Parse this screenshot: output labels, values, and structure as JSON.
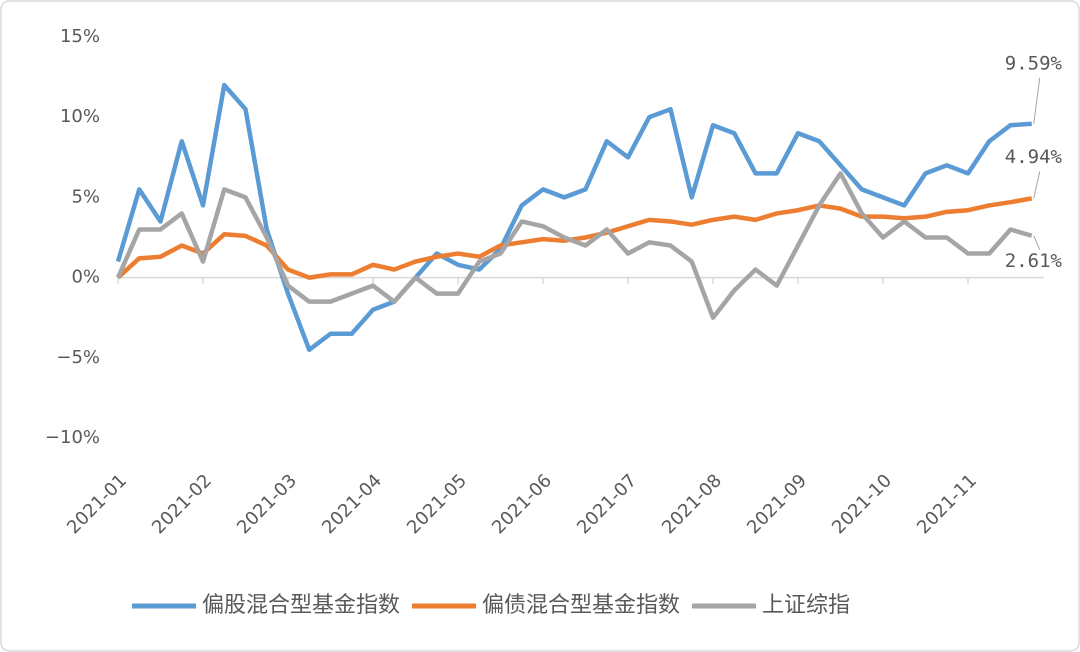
{
  "chart_data": {
    "type": "line",
    "categories": [
      "2021-01",
      null,
      null,
      null,
      "2021-02",
      null,
      null,
      null,
      "2021-03",
      null,
      null,
      null,
      "2021-04",
      null,
      null,
      null,
      "2021-05",
      null,
      null,
      null,
      "2021-06",
      null,
      null,
      null,
      "2021-07",
      null,
      null,
      null,
      "2021-08",
      null,
      null,
      null,
      "2021-09",
      null,
      null,
      null,
      "2021-10",
      null,
      null,
      null,
      "2021-11",
      null,
      null,
      null
    ],
    "series": [
      {
        "name": "偏股混合型基金指数",
        "color": "#5b9bd5",
        "values": [
          1.0,
          5.5,
          3.5,
          8.5,
          4.5,
          12.0,
          10.5,
          3.0,
          -1.0,
          -4.5,
          -3.5,
          -3.5,
          -2.0,
          -1.5,
          0.0,
          1.5,
          0.8,
          0.5,
          1.8,
          4.5,
          5.5,
          5.0,
          5.5,
          8.5,
          7.5,
          10.0,
          10.5,
          5.0,
          9.5,
          9.0,
          6.5,
          6.5,
          9.0,
          8.5,
          7.0,
          5.5,
          5.0,
          4.5,
          6.5,
          7.0,
          6.5,
          8.5,
          9.5,
          9.59
        ],
        "value_labels": [
          null,
          null,
          null,
          null,
          null,
          null,
          null,
          null,
          null,
          null,
          null,
          null,
          null,
          null,
          null,
          null,
          null,
          null,
          null,
          null,
          null,
          null,
          null,
          null,
          null,
          null,
          null,
          null,
          null,
          null,
          null,
          null,
          null,
          null,
          null,
          null,
          null,
          null,
          null,
          null,
          null,
          null,
          null,
          "9.59%"
        ],
        "label_color": "#c00000"
      },
      {
        "name": "偏债混合型基金指数",
        "color": "#ed7d31",
        "values": [
          0.0,
          1.2,
          1.3,
          2.0,
          1.5,
          2.7,
          2.6,
          2.0,
          0.5,
          0.0,
          0.2,
          0.2,
          0.8,
          0.5,
          1.0,
          1.3,
          1.5,
          1.3,
          2.0,
          2.2,
          2.4,
          2.3,
          2.5,
          2.8,
          3.2,
          3.6,
          3.5,
          3.3,
          3.6,
          3.8,
          3.6,
          4.0,
          4.2,
          4.5,
          4.3,
          3.8,
          3.8,
          3.7,
          3.8,
          4.1,
          4.2,
          4.5,
          4.7,
          4.94
        ],
        "value_labels": [
          null,
          null,
          null,
          null,
          null,
          null,
          null,
          null,
          null,
          null,
          null,
          null,
          null,
          null,
          null,
          null,
          null,
          null,
          null,
          null,
          null,
          null,
          null,
          null,
          null,
          null,
          null,
          null,
          null,
          null,
          null,
          null,
          null,
          null,
          null,
          null,
          null,
          null,
          null,
          null,
          null,
          null,
          null,
          "4.94%"
        ],
        "label_color": "#ed7d31"
      },
      {
        "name": "上证综指",
        "color": "#a5a5a5",
        "values": [
          0.0,
          3.0,
          3.0,
          4.0,
          1.0,
          5.5,
          5.0,
          2.5,
          -0.5,
          -1.5,
          -1.5,
          -1.0,
          -0.5,
          -1.5,
          0.0,
          -1.0,
          -1.0,
          1.0,
          1.5,
          3.5,
          3.2,
          2.5,
          2.0,
          3.0,
          1.5,
          2.2,
          2.0,
          1.0,
          -2.5,
          -0.8,
          0.5,
          -0.5,
          2.0,
          4.5,
          6.5,
          4.0,
          2.5,
          3.5,
          2.5,
          2.5,
          1.5,
          1.5,
          3.0,
          2.61
        ],
        "value_labels": [
          null,
          null,
          null,
          null,
          null,
          null,
          null,
          null,
          null,
          null,
          null,
          null,
          null,
          null,
          null,
          null,
          null,
          null,
          null,
          null,
          null,
          null,
          null,
          null,
          null,
          null,
          null,
          null,
          null,
          null,
          null,
          null,
          null,
          null,
          null,
          null,
          null,
          null,
          null,
          null,
          null,
          null,
          null,
          "2.61%"
        ],
        "label_color": "#595959"
      }
    ],
    "ylim": [
      -10,
      15
    ],
    "yticks": [
      {
        "value": -10,
        "label": "−10%"
      },
      {
        "value": -5,
        "label": "−5%"
      },
      {
        "value": 0,
        "label": "0%"
      },
      {
        "value": 5,
        "label": "5%"
      },
      {
        "value": 10,
        "label": "10%"
      },
      {
        "value": 15,
        "label": "15%"
      }
    ],
    "grid": false,
    "legend": "bottom"
  }
}
